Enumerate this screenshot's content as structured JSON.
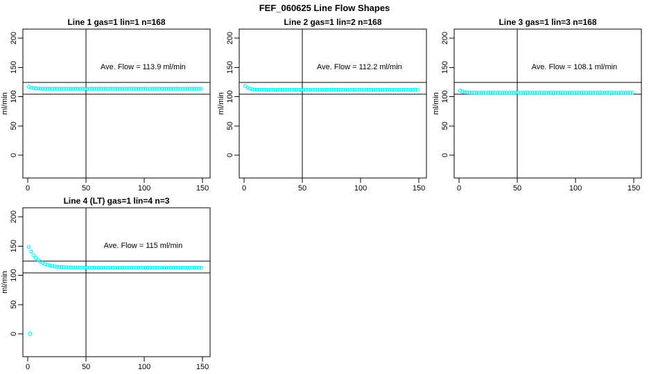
{
  "page_title": "FEF_060625  Line Flow Shapes",
  "colors": {
    "point_color": "#00ffff",
    "line_color": "#000000",
    "background": "#ffffff"
  },
  "axes": {
    "ylabel": "ml/min",
    "x_ticks": [
      0,
      50,
      100,
      150
    ],
    "y_ticks": [
      0,
      50,
      100,
      150,
      200
    ],
    "xlim": [
      -4.2,
      156.5
    ],
    "ylim": [
      -39,
      215.4
    ],
    "vline_x": 50,
    "hlines": [
      124,
      104
    ]
  },
  "chart_data": [
    {
      "type": "scatter",
      "title": "Line 1 gas=1 lin=1 n=168",
      "annotation": "Ave. Flow =  113.9  ml/min",
      "ave_flow_ml_min": 113.9,
      "n": 168,
      "x_start": 1,
      "x_step": 2,
      "y": [
        116.8,
        115.3,
        114.5,
        114.0,
        113.7,
        113.6,
        113.5,
        113.4,
        113.5,
        113.3,
        113.4,
        113.5,
        113.4,
        113.3,
        113.5,
        113.4,
        113.6,
        113.4,
        113.3,
        113.4,
        113.5,
        113.3,
        113.4,
        113.5,
        113.4,
        113.3,
        113.4,
        113.5,
        113.4,
        113.4,
        113.3,
        113.5,
        113.4,
        113.3,
        113.4,
        113.5,
        113.4,
        113.3,
        113.5,
        113.4,
        113.4,
        113.5,
        113.3,
        113.4,
        113.4,
        113.5,
        113.4,
        113.3,
        113.4,
        113.5,
        113.4,
        113.4,
        113.3,
        113.5,
        113.4,
        113.4,
        113.5,
        113.3,
        113.4,
        113.4,
        113.5,
        113.4,
        113.3,
        113.4,
        113.5,
        113.4,
        113.4,
        113.3,
        113.5,
        113.4,
        113.3,
        113.4,
        113.5,
        113.4,
        113.4
      ],
      "extra_points": []
    },
    {
      "type": "scatter",
      "title": "Line 2 gas=1 lin=2 n=168",
      "annotation": "Ave. Flow =  112.2  ml/min",
      "ave_flow_ml_min": 112.2,
      "n": 168,
      "x_start": 1,
      "x_step": 2,
      "y": [
        118.3,
        115.2,
        113.4,
        112.5,
        112.1,
        111.9,
        111.8,
        111.7,
        111.6,
        111.7,
        111.5,
        111.6,
        111.7,
        111.5,
        111.6,
        111.7,
        111.6,
        111.5,
        111.6,
        111.7,
        111.6,
        111.5,
        111.7,
        111.6,
        111.5,
        111.6,
        111.7,
        111.6,
        111.5,
        111.6,
        111.7,
        111.5,
        111.6,
        111.6,
        111.7,
        111.5,
        111.6,
        111.7,
        111.6,
        111.5,
        111.6,
        111.7,
        111.6,
        111.5,
        111.6,
        111.6,
        111.7,
        111.5,
        111.6,
        111.7,
        111.6,
        111.5,
        111.6,
        111.7,
        111.6,
        111.5,
        111.6,
        111.6,
        111.7,
        111.5,
        111.6,
        111.7,
        111.6,
        111.5,
        111.6,
        111.7,
        111.5,
        111.6,
        111.6,
        111.7,
        111.6,
        111.5,
        111.6,
        111.7,
        111.6
      ],
      "extra_points": []
    },
    {
      "type": "scatter",
      "title": "Line 3 gas=1 lin=3 n=168",
      "annotation": "Ave. Flow =  108.1  ml/min",
      "ave_flow_ml_min": 108.1,
      "n": 168,
      "x_start": 1,
      "x_step": 2,
      "y": [
        110.4,
        108.6,
        107.6,
        107.2,
        107.0,
        106.9,
        106.8,
        106.9,
        106.7,
        106.8,
        106.9,
        106.7,
        106.8,
        106.9,
        106.8,
        106.7,
        106.8,
        106.9,
        106.8,
        106.7,
        106.9,
        106.8,
        106.7,
        106.8,
        106.9,
        106.8,
        106.7,
        106.8,
        106.8,
        106.9,
        106.7,
        106.8,
        106.9,
        106.8,
        106.7,
        106.8,
        106.9,
        106.7,
        106.8,
        106.8,
        106.9,
        106.8,
        106.7,
        106.8,
        106.9,
        106.8,
        106.7,
        106.8,
        106.9,
        106.8,
        106.7,
        106.8,
        106.8,
        106.9,
        106.7,
        106.8,
        106.9,
        106.8,
        106.7,
        106.8,
        106.9,
        106.8,
        106.7,
        106.8,
        106.8,
        106.9,
        106.7,
        106.8,
        106.9,
        106.8,
        106.7,
        106.8,
        106.9,
        106.8,
        106.8
      ],
      "extra_points": []
    },
    {
      "type": "scatter",
      "title": "Line 4 (LT) gas=1 lin=4 n=3",
      "annotation": "Ave. Flow =  115  ml/min",
      "ave_flow_ml_min": 115,
      "n": 3,
      "x_start": 1,
      "x_step": 2,
      "y": [
        148.3,
        140.5,
        134.4,
        129.7,
        126.1,
        123.2,
        121.0,
        119.1,
        117.8,
        116.7,
        115.9,
        115.3,
        114.8,
        114.4,
        114.1,
        113.8,
        113.7,
        113.5,
        113.4,
        113.3,
        113.3,
        113.2,
        113.2,
        113.1,
        113.1,
        113.0,
        113.1,
        113.0,
        113.0,
        113.1,
        113.0,
        113.0,
        113.1,
        113.0,
        113.0,
        113.1,
        113.0,
        113.0,
        113.1,
        113.0,
        113.0,
        113.1,
        113.0,
        113.0,
        113.1,
        113.0,
        113.0,
        113.1,
        113.0,
        113.0,
        113.1,
        113.0,
        113.0,
        113.1,
        113.0,
        113.0,
        113.1,
        113.0,
        113.0,
        113.1,
        113.0,
        113.0,
        113.1,
        113.0,
        113.0,
        113.1,
        113.0,
        113.0,
        113.1,
        113.0,
        113.0,
        113.1,
        113.0,
        113.0,
        113.0
      ],
      "extra_points": [
        [
          2,
          0
        ]
      ]
    }
  ]
}
